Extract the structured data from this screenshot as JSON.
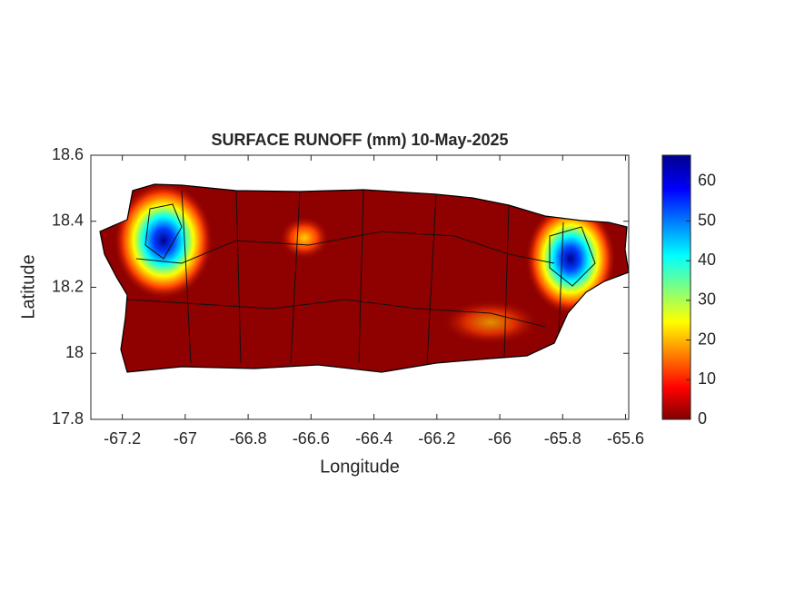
{
  "chart_data": {
    "type": "map",
    "title": "SURFACE RUNOFF (mm) 10-May-2025",
    "xlabel": "Longitude",
    "ylabel": "Latitude",
    "xlim": [
      -67.3,
      -65.59
    ],
    "ylim": [
      17.8,
      18.6
    ],
    "xticks": [
      -67.2,
      -67,
      -66.8,
      -66.6,
      -66.4,
      -66.2,
      -66,
      -65.8,
      -65.6
    ],
    "yticks": [
      17.8,
      18,
      18.2,
      18.4,
      18.6
    ],
    "colorbar": {
      "clim": [
        0,
        66.6
      ],
      "ticks": [
        0,
        10,
        20,
        30,
        40,
        50,
        60
      ]
    }
  }
}
